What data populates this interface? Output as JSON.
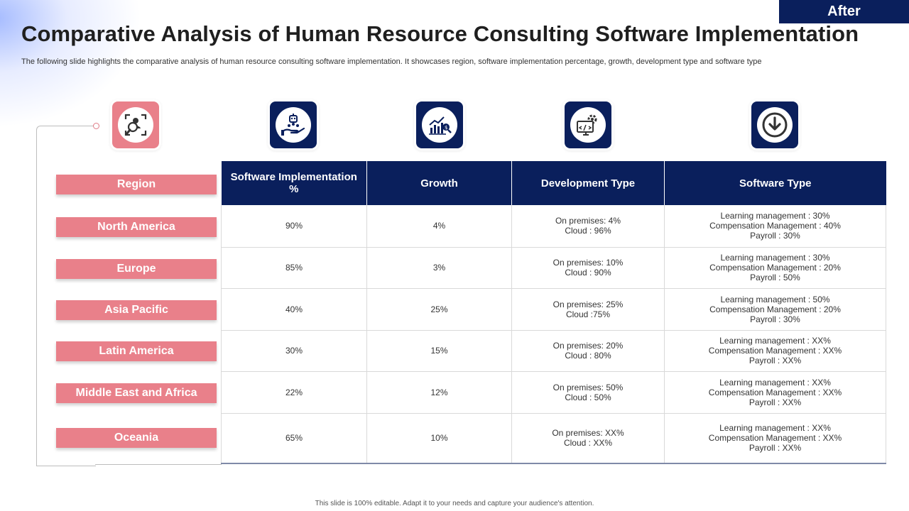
{
  "header": {
    "tag": "After",
    "title": "Comparative Analysis of Human Resource Consulting Software Implementation",
    "subtitle": "The following slide highlights the comparative analysis of human resource consulting software implementation. It showcases region, software implementation percentage, growth, development type and software type"
  },
  "icons": [
    "recruit-search-icon",
    "hand-robot-icon",
    "growth-chart-icon",
    "monitor-code-gear-icon",
    "download-circle-icon"
  ],
  "colors": {
    "navy": "#0a1f5c",
    "pink": "#e9808a"
  },
  "table": {
    "region_header": "Region",
    "columns": [
      "Software Implementation %",
      "Growth",
      "Development Type",
      "Software Type"
    ],
    "rows": [
      {
        "region": "North America",
        "implementation": "90%",
        "growth": "4%",
        "dev": [
          "On premises: 4%",
          "Cloud : 96%"
        ],
        "software": [
          "Learning management : 30%",
          "Compensation Management : 40%",
          "Payroll : 30%"
        ]
      },
      {
        "region": "Europe",
        "implementation": "85%",
        "growth": "3%",
        "dev": [
          "On premises: 10%",
          "Cloud : 90%"
        ],
        "software": [
          "Learning management : 30%",
          "Compensation Management : 20%",
          "Payroll : 50%"
        ]
      },
      {
        "region": "Asia Pacific",
        "implementation": "40%",
        "growth": "25%",
        "dev": [
          "On premises: 25%",
          "Cloud :75%"
        ],
        "software": [
          "Learning management : 50%",
          "Compensation Management : 20%",
          "Payroll : 30%"
        ]
      },
      {
        "region": "Latin America",
        "implementation": "30%",
        "growth": "15%",
        "dev": [
          "On premises: 20%",
          "Cloud : 80%"
        ],
        "software": [
          "Learning management : XX%",
          "Compensation Management : XX%",
          "Payroll : XX%"
        ]
      },
      {
        "region": "Middle East and Africa",
        "implementation": "22%",
        "growth": "12%",
        "dev": [
          "On premises: 50%",
          "Cloud : 50%"
        ],
        "software": [
          "Learning management : XX%",
          "Compensation Management : XX%",
          "Payroll : XX%"
        ]
      },
      {
        "region": "Oceania",
        "implementation": "65%",
        "growth": "10%",
        "dev": [
          "On premises: XX%",
          "Cloud : XX%"
        ],
        "software": [
          "Learning management : XX%",
          "Compensation Management : XX%",
          "Payroll : XX%"
        ]
      }
    ]
  },
  "footer": "This slide is 100% editable. Adapt it to your needs and capture your audience's attention."
}
